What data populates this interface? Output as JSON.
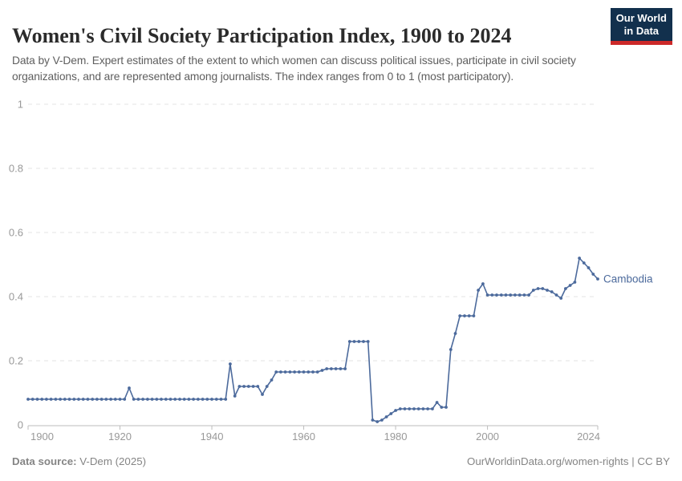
{
  "header": {
    "title": "Women's Civil Society Participation Index, 1900 to 2024",
    "subtitle": "Data by V-Dem. Expert estimates of the extent to which women can discuss political issues, participate in civil society organizations, and are represented among journalists. The index ranges from 0 to 1 (most participatory)."
  },
  "logo": {
    "line1": "Our World",
    "line2": "in Data"
  },
  "colors": {
    "line": "#4c6a9c",
    "grid": "#e3e3e3",
    "axis": "#bdbdbd",
    "tick_label": "#999999",
    "title": "#2b2b2b",
    "subtitle": "#5e5e5e",
    "footer": "#858585",
    "logo_bg": "#12304d",
    "logo_stripe": "#cc2929"
  },
  "chart_data": {
    "type": "line",
    "title": "Women's Civil Society Participation Index, 1900 to 2024",
    "xlabel": "",
    "ylabel": "",
    "x_range": [
      1900,
      2024
    ],
    "ylim": [
      0,
      1
    ],
    "grid": true,
    "legend_position": "line-end-label",
    "yticks": [
      0,
      0.2,
      0.4,
      0.6,
      0.8,
      1
    ],
    "ytick_labels": [
      "0",
      "0.2",
      "0.4",
      "0.6",
      "0.8",
      "1"
    ],
    "xticks": [
      1900,
      1920,
      1940,
      1960,
      1980,
      2000,
      2024
    ],
    "series": [
      {
        "name": "Cambodia",
        "start_year": 1900,
        "values": [
          0.08,
          0.08,
          0.08,
          0.08,
          0.08,
          0.08,
          0.08,
          0.08,
          0.08,
          0.08,
          0.08,
          0.08,
          0.08,
          0.08,
          0.08,
          0.08,
          0.08,
          0.08,
          0.08,
          0.08,
          0.08,
          0.08,
          0.115,
          0.08,
          0.08,
          0.08,
          0.08,
          0.08,
          0.08,
          0.08,
          0.08,
          0.08,
          0.08,
          0.08,
          0.08,
          0.08,
          0.08,
          0.08,
          0.08,
          0.08,
          0.08,
          0.08,
          0.08,
          0.08,
          0.19,
          0.09,
          0.12,
          0.12,
          0.12,
          0.12,
          0.12,
          0.095,
          0.12,
          0.14,
          0.165,
          0.165,
          0.165,
          0.165,
          0.165,
          0.165,
          0.165,
          0.165,
          0.165,
          0.165,
          0.17,
          0.175,
          0.175,
          0.175,
          0.175,
          0.175,
          0.26,
          0.26,
          0.26,
          0.26,
          0.26,
          0.015,
          0.01,
          0.015,
          0.025,
          0.035,
          0.045,
          0.05,
          0.05,
          0.05,
          0.05,
          0.05,
          0.05,
          0.05,
          0.05,
          0.07,
          0.055,
          0.055,
          0.235,
          0.285,
          0.34,
          0.34,
          0.34,
          0.34,
          0.42,
          0.44,
          0.405,
          0.405,
          0.405,
          0.405,
          0.405,
          0.405,
          0.405,
          0.405,
          0.405,
          0.405,
          0.42,
          0.425,
          0.425,
          0.42,
          0.415,
          0.405,
          0.395,
          0.425,
          0.435,
          0.445,
          0.52,
          0.505,
          0.49,
          0.47,
          0.455
        ]
      }
    ]
  },
  "footer": {
    "source_label": "Data source:",
    "source_value": "V-Dem (2025)",
    "link": "OurWorldinData.org/women-rights",
    "separator": " | ",
    "license": "CC BY"
  }
}
